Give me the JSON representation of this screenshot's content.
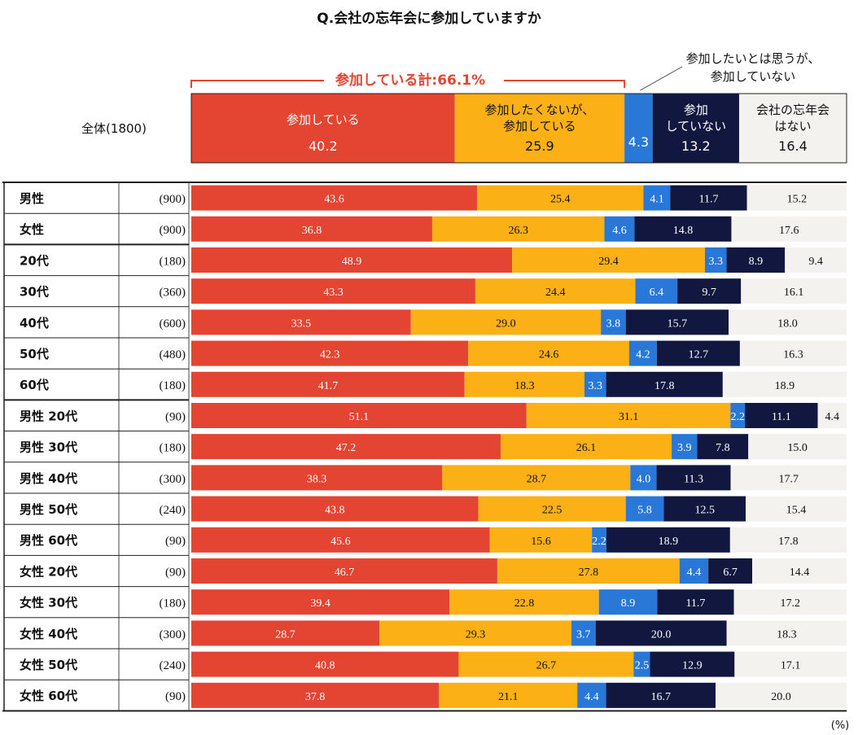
{
  "chart_data": {
    "type": "bar",
    "stacked": true,
    "orientation": "horizontal",
    "title": "Q.会社の忘年会に参加していますか",
    "unit_label": "(%)",
    "colors": {
      "participate": "#e44532",
      "reluctant": "#fbb015",
      "want_but_not": "#2978d8",
      "not_participate": "#12173f",
      "no_party": "#f3f2ee"
    },
    "series": [
      {
        "key": "participate",
        "name": "参加している"
      },
      {
        "key": "reluctant",
        "name": "参加したくないが、参加している"
      },
      {
        "key": "want_but_not",
        "name": "参加したいとは思うが、参加していない"
      },
      {
        "key": "not_participate",
        "name": "参加していない"
      },
      {
        "key": "no_party",
        "name": "会社の忘年会はない"
      }
    ],
    "overall": {
      "label": "全体(1800)",
      "values": [
        40.2,
        25.9,
        4.3,
        13.2,
        16.4
      ],
      "segment_labels": [
        [
          "参加している"
        ],
        [
          "参加したくないが、",
          "参加している"
        ],
        [],
        [
          "参加",
          "していない"
        ],
        [
          "会社の忘年会",
          "はない"
        ]
      ],
      "total_label": "参加している計:66.1%",
      "callout_lines": [
        "参加したいとは思うが、",
        "参加していない"
      ]
    },
    "rows": [
      {
        "label": "男性",
        "n": "(900)",
        "values": [
          43.6,
          25.4,
          4.1,
          11.7,
          15.2
        ]
      },
      {
        "label": "女性",
        "n": "(900)",
        "values": [
          36.8,
          26.3,
          4.6,
          14.8,
          17.6
        ]
      },
      {
        "label": "20代",
        "n": "(180)",
        "values": [
          48.9,
          29.4,
          3.3,
          8.9,
          9.4
        ]
      },
      {
        "label": "30代",
        "n": "(360)",
        "values": [
          43.3,
          24.4,
          6.4,
          9.7,
          16.1
        ]
      },
      {
        "label": "40代",
        "n": "(600)",
        "values": [
          33.5,
          29.0,
          3.8,
          15.7,
          18.0
        ]
      },
      {
        "label": "50代",
        "n": "(480)",
        "values": [
          42.3,
          24.6,
          4.2,
          12.7,
          16.3
        ]
      },
      {
        "label": "60代",
        "n": "(180)",
        "values": [
          41.7,
          18.3,
          3.3,
          17.8,
          18.9
        ]
      },
      {
        "label": "男性 20代",
        "n": "(90)",
        "values": [
          51.1,
          31.1,
          2.2,
          11.1,
          4.4
        ]
      },
      {
        "label": "男性 30代",
        "n": "(180)",
        "values": [
          47.2,
          26.1,
          3.9,
          7.8,
          15.0
        ]
      },
      {
        "label": "男性 40代",
        "n": "(300)",
        "values": [
          38.3,
          28.7,
          4.0,
          11.3,
          17.7
        ]
      },
      {
        "label": "男性 50代",
        "n": "(240)",
        "values": [
          43.8,
          22.5,
          5.8,
          12.5,
          15.4
        ]
      },
      {
        "label": "男性 60代",
        "n": "(90)",
        "values": [
          45.6,
          15.6,
          2.2,
          18.9,
          17.8
        ]
      },
      {
        "label": "女性 20代",
        "n": "(90)",
        "values": [
          46.7,
          27.8,
          4.4,
          6.7,
          14.4
        ]
      },
      {
        "label": "女性 30代",
        "n": "(180)",
        "values": [
          39.4,
          22.8,
          8.9,
          11.7,
          17.2
        ]
      },
      {
        "label": "女性 40代",
        "n": "(300)",
        "values": [
          28.7,
          29.3,
          3.7,
          20.0,
          18.3
        ]
      },
      {
        "label": "女性 50代",
        "n": "(240)",
        "values": [
          40.8,
          26.7,
          2.5,
          12.9,
          17.1
        ]
      },
      {
        "label": "女性 60代",
        "n": "(90)",
        "values": [
          37.8,
          21.1,
          4.4,
          16.7,
          20.0
        ]
      }
    ],
    "xlim": [
      0,
      100
    ],
    "group_breaks_after_rows": [
      2,
      7
    ],
    "grid": false
  }
}
